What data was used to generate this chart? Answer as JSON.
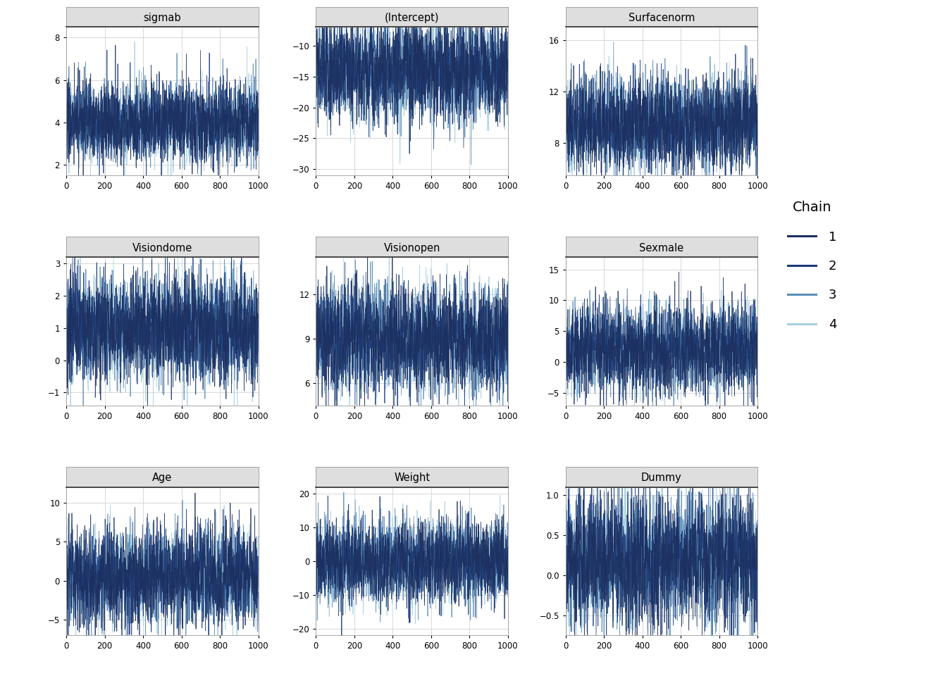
{
  "panels": [
    {
      "title": "sigmab",
      "ylim": [
        1.5,
        8.5
      ],
      "yticks": [
        2,
        4,
        6,
        8
      ],
      "means": [
        4.0,
        4.0,
        4.0,
        4.0
      ],
      "scales": [
        0.9,
        0.9,
        0.9,
        0.9
      ]
    },
    {
      "title": "(Intercept)",
      "ylim": [
        -31,
        -7
      ],
      "yticks": [
        -30,
        -25,
        -20,
        -15,
        -10
      ],
      "means": [
        -14.0,
        -14.0,
        -14.0,
        -14.0
      ],
      "scales": [
        4.0,
        4.0,
        4.0,
        4.0
      ]
    },
    {
      "title": "Surfacenorm",
      "ylim": [
        5.5,
        17
      ],
      "yticks": [
        8,
        12,
        16
      ],
      "means": [
        9.5,
        9.5,
        9.5,
        9.5
      ],
      "scales": [
        1.8,
        1.8,
        1.8,
        1.8
      ]
    },
    {
      "title": "Visiondome",
      "ylim": [
        -1.4,
        3.2
      ],
      "yticks": [
        -1,
        0,
        1,
        2,
        3
      ],
      "means": [
        1.0,
        1.0,
        1.0,
        1.0
      ],
      "scales": [
        0.8,
        0.8,
        0.8,
        0.8
      ]
    },
    {
      "title": "Visionopen",
      "ylim": [
        4.5,
        14.5
      ],
      "yticks": [
        6,
        9,
        12
      ],
      "means": [
        9.0,
        9.0,
        9.0,
        9.0
      ],
      "scales": [
        1.8,
        1.8,
        1.8,
        1.8
      ]
    },
    {
      "title": "Sexmale",
      "ylim": [
        -7,
        17
      ],
      "yticks": [
        -5,
        0,
        5,
        10,
        15
      ],
      "means": [
        2.0,
        2.0,
        2.0,
        2.0
      ],
      "scales": [
        3.5,
        3.5,
        3.5,
        3.5
      ]
    },
    {
      "title": "Age",
      "ylim": [
        -7,
        12
      ],
      "yticks": [
        -5,
        0,
        5,
        10
      ],
      "means": [
        0.5,
        0.5,
        0.5,
        0.5
      ],
      "scales": [
        3.0,
        3.0,
        3.0,
        3.0
      ]
    },
    {
      "title": "Weight",
      "ylim": [
        -22,
        22
      ],
      "yticks": [
        -20,
        -10,
        0,
        10,
        20
      ],
      "means": [
        0.0,
        0.0,
        0.0,
        0.0
      ],
      "scales": [
        6.0,
        6.0,
        6.0,
        6.0
      ]
    },
    {
      "title": "Dummy",
      "ylim": [
        -0.75,
        1.1
      ],
      "yticks": [
        -0.5,
        0.0,
        0.5,
        1.0
      ],
      "means": [
        0.2,
        0.2,
        0.2,
        0.2
      ],
      "scales": [
        0.4,
        0.4,
        0.4,
        0.4
      ]
    }
  ],
  "chain_colors": [
    "#1c2f5e",
    "#1a3a7a",
    "#5b8db8",
    "#a8cfe0"
  ],
  "n_samples": 1000,
  "xlim": [
    0,
    1000
  ],
  "xticks": [
    0,
    200,
    400,
    600,
    800,
    1000
  ],
  "background_color": "#ffffff",
  "panel_bg": "#ffffff",
  "header_bg": "#dedede",
  "header_border": "#333333",
  "grid_color": "#d8d8d8",
  "legend_title": "Chain",
  "legend_labels": [
    "1",
    "2",
    "3",
    "4"
  ]
}
